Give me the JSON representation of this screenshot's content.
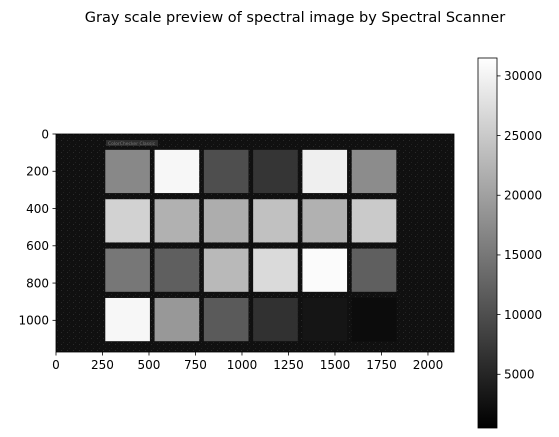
{
  "chart_data": {
    "type": "heatmap",
    "title": "Gray scale preview of spectral image by Spectral Scanner",
    "xlabel": "",
    "ylabel": "",
    "xlim": [
      0,
      2140
    ],
    "ylim": [
      1170,
      0
    ],
    "x_ticks": [
      0,
      250,
      500,
      750,
      1000,
      1250,
      1500,
      1750,
      2000
    ],
    "y_ticks": [
      0,
      200,
      400,
      600,
      800,
      1000
    ],
    "colormap": "gray",
    "colorbar": {
      "min": 500,
      "max": 31500,
      "ticks": [
        5000,
        10000,
        15000,
        20000,
        25000,
        30000
      ]
    },
    "background_value": 2500,
    "chart_label": "ColorChecker Classic",
    "patches": [
      {
        "row": 1,
        "col": 1,
        "value": 17000
      },
      {
        "row": 1,
        "col": 2,
        "value": 30500
      },
      {
        "row": 1,
        "col": 3,
        "value": 10000
      },
      {
        "row": 1,
        "col": 4,
        "value": 7000
      },
      {
        "row": 1,
        "col": 5,
        "value": 29500
      },
      {
        "row": 1,
        "col": 6,
        "value": 17500
      },
      {
        "row": 2,
        "col": 1,
        "value": 26000
      },
      {
        "row": 2,
        "col": 2,
        "value": 22000
      },
      {
        "row": 2,
        "col": 3,
        "value": 21500
      },
      {
        "row": 2,
        "col": 4,
        "value": 24000
      },
      {
        "row": 2,
        "col": 5,
        "value": 22000
      },
      {
        "row": 2,
        "col": 6,
        "value": 25000
      },
      {
        "row": 3,
        "col": 1,
        "value": 15000
      },
      {
        "row": 3,
        "col": 2,
        "value": 12000
      },
      {
        "row": 3,
        "col": 3,
        "value": 23000
      },
      {
        "row": 3,
        "col": 4,
        "value": 27000
      },
      {
        "row": 3,
        "col": 5,
        "value": 31000
      },
      {
        "row": 3,
        "col": 6,
        "value": 12000
      },
      {
        "row": 4,
        "col": 1,
        "value": 30500
      },
      {
        "row": 4,
        "col": 2,
        "value": 19000
      },
      {
        "row": 4,
        "col": 3,
        "value": 11500
      },
      {
        "row": 4,
        "col": 4,
        "value": 6500
      },
      {
        "row": 4,
        "col": 5,
        "value": 3000
      },
      {
        "row": 4,
        "col": 6,
        "value": 2000
      }
    ]
  }
}
